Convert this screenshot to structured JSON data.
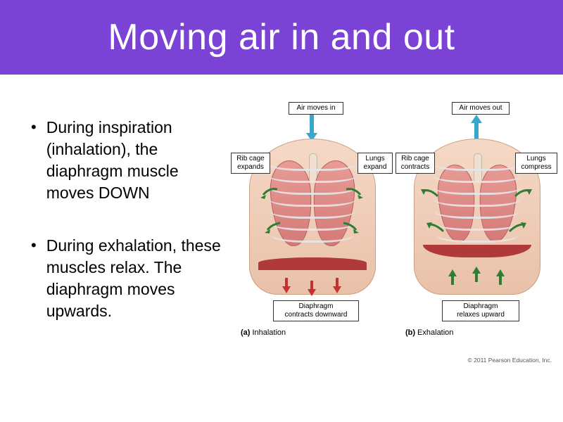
{
  "colors": {
    "title_bg": "#7b42d6",
    "title_text": "#ffffff",
    "air_arrow": "#3aa6c9",
    "green_arrow": "#2f7d32",
    "red_arrow": "#c53030",
    "skin_top": "#f5d9c6",
    "skin_bottom": "#e9c1a9",
    "lung_top": "#e89b95",
    "lung_bottom": "#d47a77",
    "diaphragm": "#b03a3a",
    "label_border": "#333333"
  },
  "title": "Moving air in and out",
  "bullets": [
    "During inspiration (inhalation), the diaphragm muscle moves DOWN",
    "During exhalation, these muscles relax. The diaphragm moves upwards."
  ],
  "diagram": {
    "panels": {
      "a": {
        "caption_letter": "(a)",
        "caption_text": "Inhalation",
        "air_label": "Air moves in",
        "air_direction": "down",
        "left_label": "Rib cage\nexpands",
        "right_label": "Lungs\nexpand",
        "bottom_label": "Diaphragm\ncontracts downward",
        "side_arrow_color": "green",
        "side_arrow_direction": "outward",
        "diaphragm_arrow_color": "red",
        "diaphragm_arrow_direction": "down"
      },
      "b": {
        "caption_letter": "(b)",
        "caption_text": "Exhalation",
        "air_label": "Air moves out",
        "air_direction": "up",
        "left_label": "Rib cage\ncontracts",
        "right_label": "Lungs\ncompress",
        "bottom_label": "Diaphragm\nrelaxes upward",
        "side_arrow_color": "green",
        "side_arrow_direction": "inward",
        "diaphragm_arrow_color": "green",
        "diaphragm_arrow_direction": "up"
      }
    },
    "rib_count": 7,
    "copyright": "© 2011 Pearson Education, Inc."
  }
}
